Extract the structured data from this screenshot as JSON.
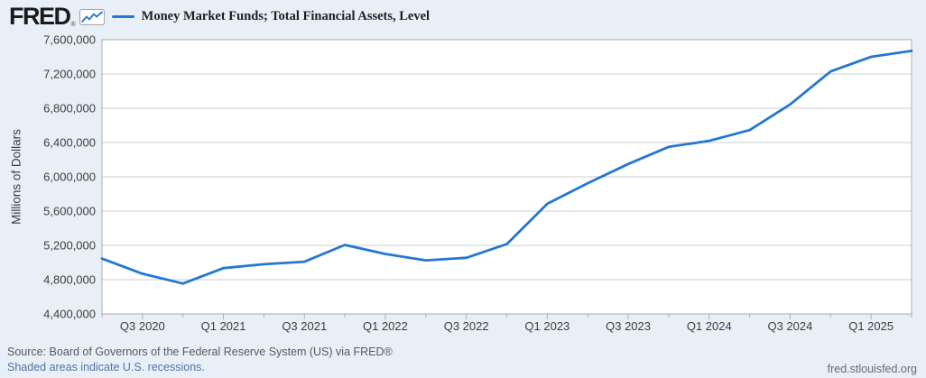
{
  "header": {
    "logo_text": "FRED",
    "logo_registered": "®",
    "logo_sparkline_icon": "sparkline-chart-icon"
  },
  "colors": {
    "series_line": "#2577d2",
    "background": "#e9eff7",
    "plot_background": "#ffffff",
    "gridline": "#cccccc",
    "plot_border": "#adadad",
    "axis_text": "#3d3d3d",
    "link": "#4d76a4",
    "source_text": "#555a5f"
  },
  "chart_data": {
    "type": "line",
    "title": "Money Market Funds; Total Financial Assets, Level",
    "ylabel": "Millions of Dollars",
    "xlabel": "",
    "x": [
      "Q2 2020",
      "Q3 2020",
      "Q4 2020",
      "Q1 2021",
      "Q2 2021",
      "Q3 2021",
      "Q4 2021",
      "Q1 2022",
      "Q2 2022",
      "Q3 2022",
      "Q4 2022",
      "Q1 2023",
      "Q2 2023",
      "Q3 2023",
      "Q4 2023",
      "Q1 2024",
      "Q2 2024",
      "Q3 2024",
      "Q4 2024",
      "Q1 2025",
      "Q2 2025"
    ],
    "values": [
      5045000,
      4870000,
      4755000,
      4935000,
      4980000,
      5010000,
      5205000,
      5100000,
      5025000,
      5055000,
      5215000,
      5685000,
      5925000,
      6150000,
      6350000,
      6420000,
      6545000,
      6845000,
      7230000,
      7400000,
      7470000
    ],
    "ylim": [
      4400000,
      7600000
    ],
    "ytick_step": 400000,
    "ytick_labels": [
      "4,400,000",
      "4,800,000",
      "5,200,000",
      "5,600,000",
      "6,000,000",
      "6,400,000",
      "6,800,000",
      "7,200,000",
      "7,600,000"
    ],
    "xtick_labels": [
      "Q3 2020",
      "Q1 2021",
      "Q3 2021",
      "Q1 2022",
      "Q3 2022",
      "Q1 2023",
      "Q3 2023",
      "Q1 2024",
      "Q3 2024",
      "Q1 2025"
    ],
    "xtick_start_index": 1,
    "xtick_every": 2,
    "grid": "horizontal",
    "legend_position": "top-left"
  },
  "footer": {
    "source": "Source: Board of Governors of the Federal Reserve System (US) via FRED®",
    "recession_note": "Shaded areas indicate U.S. recessions.",
    "site": "fred.stlouisfed.org"
  }
}
